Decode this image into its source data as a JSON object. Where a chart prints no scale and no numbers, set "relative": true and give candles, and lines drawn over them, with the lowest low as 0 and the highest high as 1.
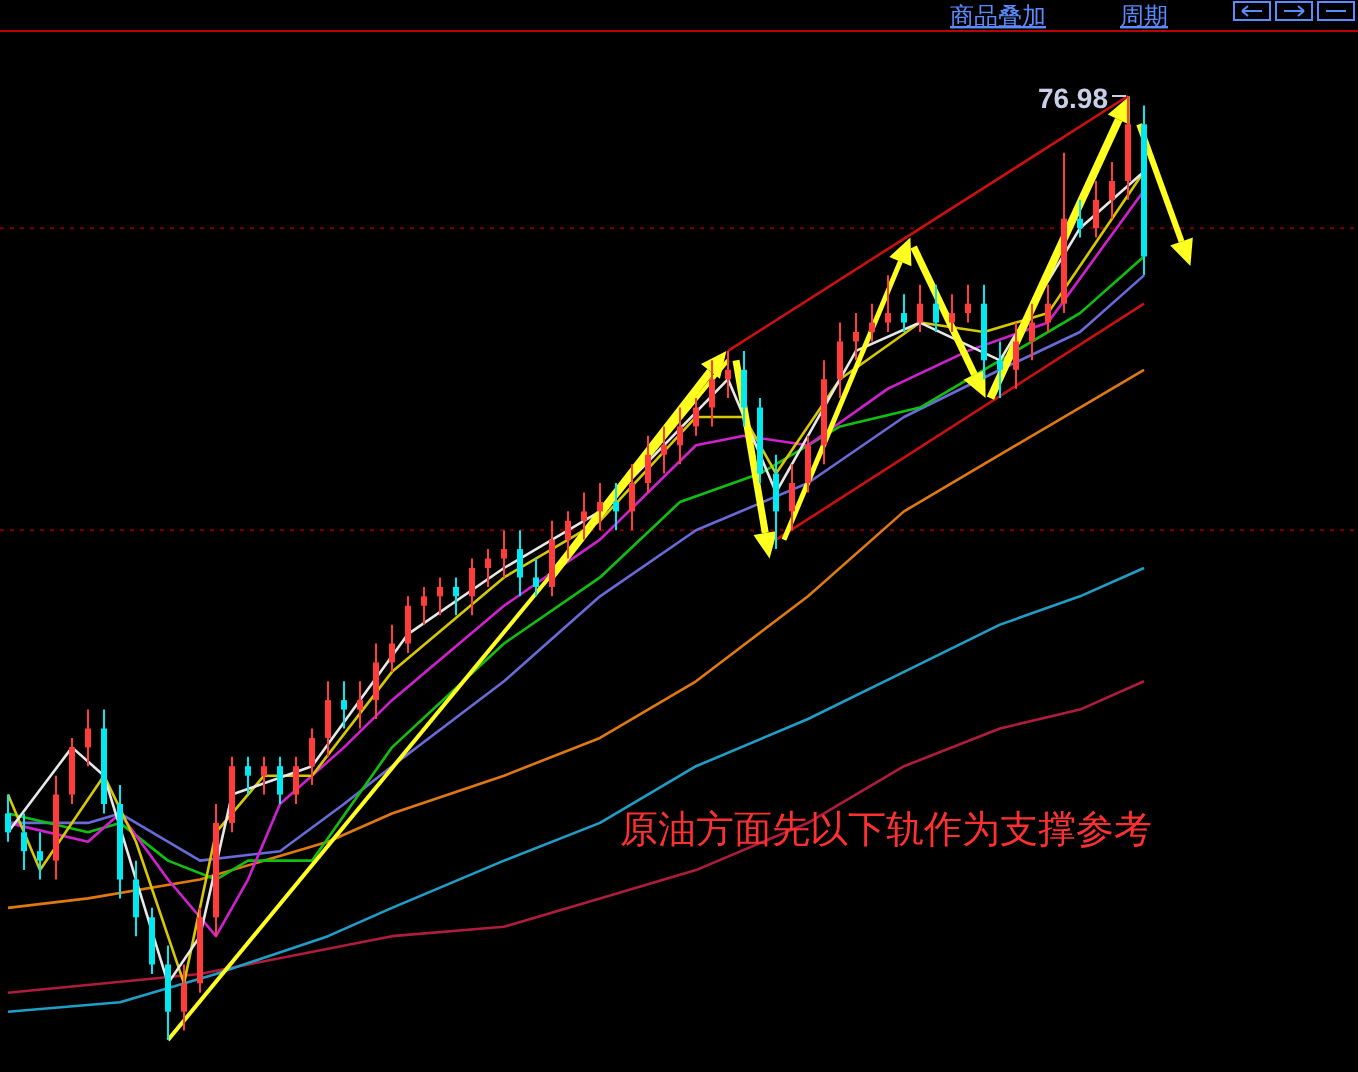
{
  "chart_data": {
    "type": "candlestick",
    "relative": true,
    "legend": false,
    "categories": [
      null,
      null,
      null,
      null,
      null,
      null,
      null,
      null,
      null,
      null,
      null,
      null,
      null,
      null,
      null,
      null,
      null,
      null,
      null,
      null,
      null,
      null,
      null,
      null,
      null,
      null,
      null,
      null,
      null,
      null,
      null,
      null,
      null,
      null,
      null,
      null,
      null,
      null,
      null,
      null,
      null,
      null,
      null,
      null,
      null,
      null,
      null,
      null,
      null,
      null,
      null,
      null,
      null,
      null,
      null,
      null,
      null,
      null,
      null,
      null,
      null,
      null,
      null,
      null,
      null,
      null,
      null,
      null,
      null,
      null,
      null,
      null
    ],
    "series": [
      {
        "type": "line",
        "color": "#b01c3c",
        "values": [
          0.05,
          null,
          null,
          null,
          null,
          null,
          null,
          null,
          null,
          null,
          null,
          null,
          0.07,
          null,
          null,
          null,
          null,
          null,
          null,
          null,
          null,
          null,
          null,
          null,
          0.11,
          null,
          null,
          null,
          null,
          null,
          null,
          0.12,
          null,
          null,
          null,
          null,
          null,
          0.15,
          null,
          null,
          null,
          null,
          null,
          0.18,
          null,
          null,
          null,
          null,
          null,
          null,
          0.23,
          null,
          null,
          null,
          null,
          null,
          0.29,
          null,
          null,
          null,
          null,
          null,
          0.33,
          null,
          null,
          null,
          null,
          0.35,
          null,
          null,
          null,
          0.38
        ]
      },
      {
        "type": "line",
        "color": "#1f9fc8",
        "values": [
          0.03,
          null,
          null,
          null,
          null,
          null,
          null,
          0.04,
          null,
          null,
          null,
          null,
          null,
          0.07,
          null,
          null,
          null,
          null,
          null,
          null,
          0.11,
          null,
          null,
          null,
          0.14,
          null,
          null,
          null,
          null,
          null,
          null,
          0.19,
          null,
          null,
          null,
          null,
          null,
          0.23,
          null,
          null,
          null,
          null,
          null,
          0.29,
          null,
          null,
          null,
          null,
          null,
          null,
          0.34,
          null,
          null,
          null,
          null,
          null,
          0.39,
          null,
          null,
          null,
          null,
          null,
          0.44,
          null,
          null,
          null,
          null,
          0.47,
          null,
          null,
          null,
          0.5
        ]
      },
      {
        "type": "line",
        "color": "#e07a10",
        "values": [
          0.14,
          null,
          null,
          null,
          null,
          0.15,
          null,
          null,
          null,
          null,
          null,
          null,
          0.17,
          null,
          null,
          null,
          null,
          null,
          null,
          null,
          0.21,
          null,
          null,
          null,
          0.24,
          null,
          null,
          null,
          null,
          null,
          null,
          0.28,
          null,
          null,
          null,
          null,
          null,
          0.32,
          null,
          null,
          null,
          null,
          null,
          0.38,
          null,
          null,
          null,
          null,
          null,
          null,
          0.47,
          null,
          null,
          null,
          null,
          null,
          0.56,
          null,
          null,
          null,
          null,
          null,
          0.62,
          null,
          null,
          null,
          null,
          0.67,
          null,
          null,
          null,
          0.71
        ]
      },
      {
        "type": "line",
        "color": "#6a6ad8",
        "values": [
          0.23,
          null,
          null,
          null,
          null,
          0.23,
          null,
          0.24,
          null,
          null,
          null,
          null,
          0.19,
          null,
          null,
          null,
          null,
          0.2,
          null,
          null,
          null,
          0.25,
          null,
          null,
          0.29,
          null,
          null,
          null,
          null,
          null,
          null,
          0.38,
          null,
          null,
          null,
          null,
          null,
          0.47,
          null,
          null,
          null,
          null,
          null,
          0.54,
          null,
          null,
          null,
          null,
          null,
          null,
          0.59,
          null,
          null,
          null,
          null,
          null,
          0.66,
          null,
          null,
          null,
          null,
          null,
          0.71,
          null,
          null,
          null,
          null,
          0.75,
          null,
          null,
          null,
          0.81
        ]
      },
      {
        "type": "line",
        "color": "#10c010",
        "values": [
          0.24,
          null,
          null,
          null,
          null,
          0.22,
          null,
          0.23,
          null,
          null,
          0.19,
          null,
          null,
          0.17,
          null,
          0.19,
          null,
          null,
          null,
          0.19,
          null,
          null,
          null,
          null,
          0.31,
          null,
          null,
          null,
          null,
          null,
          null,
          0.42,
          null,
          null,
          null,
          null,
          null,
          0.49,
          null,
          null,
          null,
          null,
          0.57,
          null,
          null,
          null,
          null,
          0.6,
          null,
          null,
          null,
          null,
          0.65,
          null,
          null,
          null,
          null,
          0.67,
          null,
          null,
          null,
          null,
          0.72,
          null,
          null,
          null,
          null,
          0.77,
          null,
          null,
          null,
          0.83
        ]
      },
      {
        "type": "line",
        "color": "#d020d0",
        "values": [
          0.23,
          null,
          null,
          null,
          null,
          0.21,
          null,
          0.24,
          null,
          null,
          0.17,
          null,
          null,
          0.11,
          null,
          0.17,
          null,
          0.25,
          null,
          null,
          null,
          0.31,
          null,
          null,
          0.36,
          null,
          null,
          null,
          null,
          null,
          null,
          0.46,
          null,
          null,
          null,
          null,
          null,
          0.53,
          null,
          null,
          null,
          null,
          null,
          0.63,
          null,
          null,
          0.64,
          null,
          null,
          null,
          0.63,
          null,
          null,
          null,
          null,
          0.69,
          null,
          null,
          null,
          null,
          0.73,
          null,
          null,
          null,
          null,
          0.76,
          null,
          null,
          0.83,
          null,
          null,
          0.9
        ]
      },
      {
        "type": "line",
        "color": "#d8c800",
        "values": [
          0.26,
          null,
          0.18,
          null,
          null,
          null,
          0.28,
          null,
          0.21,
          null,
          null,
          0.06,
          null,
          0.22,
          null,
          null,
          0.28,
          null,
          null,
          0.28,
          null,
          null,
          null,
          null,
          0.39,
          null,
          null,
          null,
          null,
          null,
          null,
          0.49,
          null,
          null,
          null,
          null,
          null,
          0.55,
          null,
          null,
          null,
          null,
          null,
          0.66,
          null,
          null,
          0.66,
          null,
          0.6,
          null,
          null,
          null,
          0.7,
          null,
          null,
          null,
          null,
          0.76,
          null,
          null,
          null,
          0.75,
          null,
          null,
          null,
          0.77,
          null,
          null,
          null,
          0.87,
          null,
          0.92
        ]
      },
      {
        "type": "line",
        "color": "#e8e8e8",
        "values": [
          0.22,
          null,
          null,
          null,
          0.31,
          null,
          0.28,
          null,
          null,
          null,
          0.06,
          null,
          0.11,
          null,
          0.26,
          null,
          null,
          null,
          null,
          0.29,
          null,
          null,
          null,
          null,
          null,
          0.43,
          null,
          null,
          null,
          null,
          null,
          0.5,
          null,
          null,
          null,
          null,
          null,
          0.56,
          null,
          null,
          null,
          null,
          null,
          null,
          null,
          0.7,
          null,
          null,
          0.58,
          null,
          null,
          null,
          null,
          0.73,
          null,
          null,
          null,
          0.76,
          null,
          null,
          null,
          null,
          0.72,
          null,
          null,
          null,
          null,
          0.86,
          null,
          null,
          null,
          0.92
        ]
      },
      {
        "type": "line",
        "color": "#cc1010",
        "values": [
          null,
          null,
          null,
          null,
          null,
          null,
          null,
          null,
          null,
          null,
          null,
          null,
          null,
          null,
          null,
          null,
          null,
          null,
          null,
          null,
          null,
          null,
          null,
          null,
          null,
          null,
          null,
          null,
          null,
          null,
          null,
          null,
          null,
          null,
          null,
          null,
          null,
          null,
          null,
          null,
          null,
          null,
          null,
          null,
          null,
          0.73,
          null,
          null,
          null,
          null,
          null,
          null,
          null,
          null,
          null,
          null,
          null,
          null,
          null,
          null,
          null,
          null,
          null,
          null,
          null,
          null,
          null,
          null,
          null,
          null,
          1.0,
          null
        ]
      },
      {
        "type": "line",
        "color": "#cc1010",
        "values": [
          null,
          null,
          null,
          null,
          null,
          null,
          null,
          null,
          null,
          null,
          null,
          null,
          null,
          null,
          null,
          null,
          null,
          null,
          null,
          null,
          null,
          null,
          null,
          null,
          null,
          null,
          null,
          null,
          null,
          null,
          null,
          null,
          null,
          null,
          null,
          null,
          null,
          null,
          null,
          null,
          null,
          null,
          null,
          null,
          null,
          null,
          null,
          null,
          0.53,
          null,
          null,
          null,
          null,
          null,
          null,
          null,
          null,
          null,
          null,
          null,
          null,
          null,
          null,
          null,
          null,
          null,
          null,
          null,
          null,
          null,
          null,
          0.78
        ]
      },
      {
        "type": "line",
        "color": "#ffff20",
        "values": [
          null,
          null,
          null,
          null,
          null,
          null,
          null,
          null,
          null,
          null,
          0,
          null,
          null,
          null,
          null,
          null,
          null,
          null,
          null,
          null,
          null,
          null,
          null,
          null,
          null,
          null,
          null,
          null,
          null,
          null,
          null,
          null,
          null,
          null,
          null,
          null,
          null,
          null,
          null,
          null,
          null,
          null,
          null,
          null,
          null,
          0.72,
          null,
          null,
          null,
          null,
          null,
          null,
          null,
          null,
          null,
          null,
          null,
          null,
          null,
          null,
          null,
          null,
          null,
          null,
          null,
          null,
          null,
          null,
          null,
          null,
          null,
          null
        ]
      },
      {
        "type": "candlestick",
        "ohlc": [
          [
            0.24,
            0.26,
            0.21,
            0.22
          ],
          [
            0.22,
            0.24,
            0.18,
            0.2
          ],
          [
            0.2,
            0.22,
            0.17,
            0.19
          ],
          [
            0.19,
            0.28,
            0.17,
            0.26
          ],
          [
            0.26,
            0.32,
            0.25,
            0.31
          ],
          [
            0.31,
            0.35,
            0.29,
            0.33
          ],
          [
            0.33,
            0.35,
            0.24,
            0.25
          ],
          [
            0.25,
            0.27,
            0.15,
            0.17
          ],
          [
            0.17,
            0.19,
            0.11,
            0.13
          ],
          [
            0.13,
            0.14,
            0.07,
            0.08
          ],
          [
            0.08,
            0.1,
            0,
            0.03
          ],
          [
            0.03,
            0.08,
            0.01,
            0.06
          ],
          [
            0.06,
            0.14,
            0.05,
            0.13
          ],
          [
            0.13,
            0.25,
            0.11,
            0.23
          ],
          [
            0.23,
            0.3,
            0.22,
            0.29
          ],
          [
            0.29,
            0.3,
            0.26,
            0.28
          ],
          [
            0.28,
            0.3,
            0.26,
            0.29
          ],
          [
            0.29,
            0.3,
            0.25,
            0.26
          ],
          [
            0.26,
            0.3,
            0.25,
            0.29
          ],
          [
            0.29,
            0.33,
            0.27,
            0.32
          ],
          [
            0.32,
            0.38,
            0.3,
            0.36
          ],
          [
            0.36,
            0.38,
            0.33,
            0.35
          ],
          [
            0.35,
            0.38,
            0.33,
            0.36
          ],
          [
            0.36,
            0.42,
            0.34,
            0.4
          ],
          [
            0.4,
            0.44,
            0.39,
            0.42
          ],
          [
            0.42,
            0.47,
            0.41,
            0.46
          ],
          [
            0.46,
            0.48,
            0.44,
            0.47
          ],
          [
            0.47,
            0.49,
            0.45,
            0.48
          ],
          [
            0.48,
            0.49,
            0.45,
            0.47
          ],
          [
            0.47,
            0.51,
            0.45,
            0.5
          ],
          [
            0.5,
            0.52,
            0.48,
            0.51
          ],
          [
            0.51,
            0.54,
            0.49,
            0.52
          ],
          [
            0.52,
            0.54,
            0.47,
            0.49
          ],
          [
            0.49,
            0.51,
            0.47,
            0.48
          ],
          [
            0.48,
            0.55,
            0.47,
            0.53
          ],
          [
            0.53,
            0.56,
            0.51,
            0.55
          ],
          [
            0.55,
            0.58,
            0.53,
            0.56
          ],
          [
            0.56,
            0.59,
            0.54,
            0.57
          ],
          [
            0.57,
            0.59,
            0.54,
            0.56
          ],
          [
            0.56,
            0.61,
            0.54,
            0.59
          ],
          [
            0.59,
            0.64,
            0.58,
            0.62
          ],
          [
            0.62,
            0.65,
            0.6,
            0.63
          ],
          [
            0.63,
            0.67,
            0.61,
            0.65
          ],
          [
            0.65,
            0.68,
            0.64,
            0.67
          ],
          [
            0.67,
            0.72,
            0.65,
            0.7
          ],
          [
            0.7,
            0.73,
            0.68,
            0.71
          ],
          [
            0.71,
            0.73,
            0.65,
            0.67
          ],
          [
            0.67,
            0.68,
            0.59,
            0.6
          ],
          [
            0.6,
            0.62,
            0.52,
            0.56
          ],
          [
            0.56,
            0.61,
            0.54,
            0.59
          ],
          [
            0.59,
            0.64,
            0.58,
            0.63
          ],
          [
            0.63,
            0.72,
            0.61,
            0.7
          ],
          [
            0.7,
            0.76,
            0.68,
            0.74
          ],
          [
            0.74,
            0.77,
            0.72,
            0.75
          ],
          [
            0.75,
            0.78,
            0.74,
            0.76
          ],
          [
            0.76,
            0.81,
            0.75,
            0.77
          ],
          [
            0.77,
            0.79,
            0.75,
            0.76
          ],
          [
            0.76,
            0.8,
            0.75,
            0.78
          ],
          [
            0.78,
            0.8,
            0.75,
            0.76
          ],
          [
            0.76,
            0.79,
            0.75,
            0.77
          ],
          [
            0.77,
            0.8,
            0.76,
            0.78
          ],
          [
            0.78,
            0.8,
            0.7,
            0.72
          ],
          [
            0.72,
            0.74,
            0.68,
            0.71
          ],
          [
            0.71,
            0.76,
            0.69,
            0.74
          ],
          [
            0.74,
            0.78,
            0.72,
            0.76
          ],
          [
            0.76,
            0.8,
            0.75,
            0.78
          ],
          [
            0.78,
            0.94,
            0.77,
            0.87
          ],
          [
            0.87,
            0.89,
            0.85,
            0.86
          ],
          [
            0.86,
            0.91,
            0.85,
            0.89
          ],
          [
            0.89,
            0.93,
            0.87,
            0.91
          ],
          [
            0.91,
            1,
            0.89,
            0.97
          ],
          [
            0.97,
            0.99,
            0.81,
            0.83
          ]
        ]
      }
    ],
    "ref_lines": [
      {
        "axis": "y",
        "value": 0.86,
        "color": "#7a0000",
        "line_style": "dotted"
      },
      {
        "axis": "y",
        "value": 0.54,
        "color": "#7a0000",
        "line_style": "dotted"
      }
    ],
    "annotations": [
      "原油方面先以下轨作为支撑参考",
      "76.98",
      "商品叠加",
      "周期"
    ]
  }
}
